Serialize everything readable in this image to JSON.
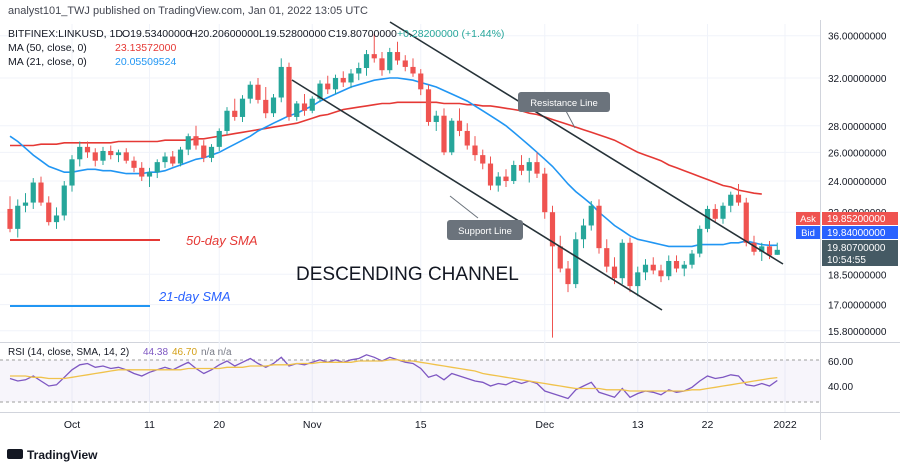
{
  "header": {
    "published": "analyst101_TWJ published on TradingView.com, Jan 01, 2022 13:05 UTC"
  },
  "legend": {
    "symbol": "BITFINEX:LINKUSD, 1D",
    "o": "O19.53400000",
    "h": "H20.20600000",
    "l": "L19.52800000",
    "c": "C19.80700000",
    "change": "+0.28200000 (+1.44%)",
    "ma50_label": "MA (50, close, 0)",
    "ma50_value": "23.13572000",
    "ma21_label": "MA (21, close, 0)",
    "ma21_value": "20.05509524"
  },
  "annotations": {
    "sma50": "50-day SMA",
    "sma21": "21-day SMA",
    "channel": "DESCENDING CHANNEL",
    "resistance": "Resistance Line",
    "support": "Support Line"
  },
  "price_tags": {
    "ask_label": "Ask",
    "ask_value": "19.85200000",
    "bid_label": "Bid",
    "bid_value": "19.84000000",
    "last_value": "19.80700000",
    "countdown": "10:54:55"
  },
  "rsi_legend": {
    "label": "RSI (14, close, SMA, 14, 2)",
    "value1": "44.38",
    "value2": "46.70",
    "na": "n/a  n/a"
  },
  "footer": {
    "brand": "TradingView"
  },
  "colors": {
    "up": "#26a69a",
    "down": "#ef5350",
    "ma50": "#e53935",
    "ma21": "#2196f3",
    "rsi": "#7e57c2",
    "rsi_ma": "#f0c24b",
    "trendline": "#263238",
    "ask": "#ef5350",
    "bid": "#2962ff",
    "last": "#455a64"
  },
  "chart_data": [
    {
      "type": "candlestick",
      "y_scale": "log",
      "y_ticks": [
        "36.00000000",
        "32.00000000",
        "28.00000000",
        "26.00000000",
        "24.00000000",
        "22.00000000",
        "18.50000000",
        "17.00000000",
        "15.80000000"
      ],
      "y_tick_values": [
        36,
        32,
        28,
        26,
        24,
        22,
        18.5,
        17,
        15.8
      ],
      "ylim": [
        15.4,
        37.2
      ],
      "x_ticks": [
        {
          "label": "Oct",
          "index": 8
        },
        {
          "label": "11",
          "index": 18
        },
        {
          "label": "20",
          "index": 27
        },
        {
          "label": "Nov",
          "index": 39
        },
        {
          "label": "15",
          "index": 53
        },
        {
          "label": "Dec",
          "index": 69
        },
        {
          "label": "13",
          "index": 81
        },
        {
          "label": "22",
          "index": 90
        },
        {
          "label": "2022",
          "index": 100
        }
      ],
      "candles_ohlc": [
        [
          22.2,
          23.0,
          20.8,
          21.0
        ],
        [
          21.0,
          22.8,
          20.5,
          22.4
        ],
        [
          22.4,
          23.2,
          22.0,
          22.6
        ],
        [
          22.6,
          24.2,
          22.2,
          23.9
        ],
        [
          23.9,
          24.3,
          22.4,
          22.6
        ],
        [
          22.6,
          23.0,
          21.2,
          21.4
        ],
        [
          21.4,
          22.3,
          21.0,
          21.8
        ],
        [
          21.8,
          24.0,
          21.5,
          23.7
        ],
        [
          23.7,
          25.8,
          23.3,
          25.5
        ],
        [
          25.5,
          26.8,
          25.0,
          26.4
        ],
        [
          26.4,
          26.8,
          25.6,
          26.0
        ],
        [
          26.0,
          26.3,
          25.0,
          25.4
        ],
        [
          25.4,
          26.4,
          25.1,
          26.1
        ],
        [
          26.1,
          26.5,
          25.5,
          25.8
        ],
        [
          25.8,
          26.2,
          25.3,
          26.0
        ],
        [
          26.0,
          26.3,
          25.2,
          25.4
        ],
        [
          25.4,
          25.7,
          24.6,
          24.9
        ],
        [
          24.9,
          25.3,
          24.0,
          24.3
        ],
        [
          24.3,
          24.9,
          23.6,
          24.6
        ],
        [
          24.6,
          25.5,
          24.2,
          25.3
        ],
        [
          25.3,
          26.0,
          24.9,
          25.7
        ],
        [
          25.7,
          26.1,
          25.0,
          25.2
        ],
        [
          25.2,
          26.4,
          25.0,
          26.2
        ],
        [
          26.2,
          27.4,
          25.8,
          27.2
        ],
        [
          27.2,
          28.0,
          26.2,
          26.5
        ],
        [
          26.5,
          26.9,
          25.3,
          25.6
        ],
        [
          25.6,
          26.6,
          25.3,
          26.4
        ],
        [
          26.4,
          27.8,
          26.1,
          27.6
        ],
        [
          27.6,
          29.5,
          27.3,
          29.2
        ],
        [
          29.2,
          30.2,
          28.4,
          28.7
        ],
        [
          28.7,
          30.5,
          28.3,
          30.2
        ],
        [
          30.2,
          31.7,
          29.8,
          31.4
        ],
        [
          31.4,
          32.0,
          29.8,
          30.1
        ],
        [
          30.1,
          31.2,
          28.6,
          29.0
        ],
        [
          29.0,
          30.6,
          28.7,
          30.3
        ],
        [
          30.3,
          33.8,
          29.9,
          33.0
        ],
        [
          33.0,
          33.4,
          28.4,
          28.7
        ],
        [
          28.7,
          30.0,
          28.4,
          29.8
        ],
        [
          29.8,
          30.6,
          28.8,
          29.2
        ],
        [
          29.2,
          30.4,
          29.0,
          30.2
        ],
        [
          30.2,
          31.8,
          29.9,
          31.5
        ],
        [
          31.5,
          32.2,
          30.6,
          31.0
        ],
        [
          31.0,
          32.3,
          30.6,
          32.0
        ],
        [
          32.0,
          32.6,
          31.2,
          31.6
        ],
        [
          31.6,
          32.8,
          31.1,
          32.4
        ],
        [
          32.4,
          33.4,
          31.8,
          32.9
        ],
        [
          32.9,
          34.6,
          32.2,
          34.2
        ],
        [
          34.2,
          36.2,
          33.4,
          33.8
        ],
        [
          33.8,
          34.4,
          32.2,
          32.7
        ],
        [
          32.7,
          34.8,
          32.4,
          34.4
        ],
        [
          34.4,
          35.4,
          33.2,
          33.6
        ],
        [
          33.6,
          34.1,
          32.6,
          33.0
        ],
        [
          33.0,
          33.8,
          32.1,
          32.4
        ],
        [
          32.4,
          32.8,
          30.5,
          31.0
        ],
        [
          31.0,
          31.4,
          28.0,
          28.3
        ],
        [
          28.3,
          29.2,
          27.6,
          28.8
        ],
        [
          28.8,
          29.4,
          25.8,
          26.0
        ],
        [
          26.0,
          28.6,
          25.8,
          28.4
        ],
        [
          28.4,
          29.4,
          27.2,
          27.6
        ],
        [
          27.6,
          28.2,
          26.2,
          26.5
        ],
        [
          26.5,
          27.2,
          25.4,
          25.8
        ],
        [
          25.8,
          26.2,
          24.8,
          25.2
        ],
        [
          25.2,
          25.7,
          23.4,
          23.7
        ],
        [
          23.7,
          24.6,
          23.3,
          24.3
        ],
        [
          24.3,
          24.8,
          23.6,
          24.0
        ],
        [
          24.0,
          25.4,
          23.8,
          25.1
        ],
        [
          25.1,
          25.8,
          24.4,
          24.7
        ],
        [
          24.7,
          25.6,
          23.9,
          25.3
        ],
        [
          25.3,
          26.0,
          24.2,
          24.5
        ],
        [
          24.5,
          24.9,
          21.6,
          22.0
        ],
        [
          22.0,
          22.4,
          15.5,
          20.0
        ],
        [
          20.0,
          20.6,
          18.6,
          18.8
        ],
        [
          18.8,
          19.2,
          17.6,
          18.0
        ],
        [
          18.0,
          20.8,
          17.8,
          20.4
        ],
        [
          20.4,
          21.6,
          19.9,
          21.2
        ],
        [
          21.2,
          22.7,
          20.9,
          22.4
        ],
        [
          22.4,
          22.8,
          19.6,
          19.9
        ],
        [
          19.9,
          20.4,
          18.6,
          18.9
        ],
        [
          18.9,
          19.4,
          18.0,
          18.3
        ],
        [
          18.3,
          20.4,
          18.0,
          20.2
        ],
        [
          20.2,
          20.5,
          17.6,
          17.9
        ],
        [
          17.9,
          18.9,
          17.4,
          18.6
        ],
        [
          18.6,
          19.3,
          18.2,
          19.0
        ],
        [
          19.0,
          19.4,
          18.5,
          18.7
        ],
        [
          18.7,
          19.0,
          18.1,
          18.4
        ],
        [
          18.4,
          19.5,
          18.2,
          19.2
        ],
        [
          19.2,
          19.5,
          18.6,
          18.8
        ],
        [
          18.8,
          19.2,
          18.4,
          19.0
        ],
        [
          19.0,
          19.8,
          18.8,
          19.6
        ],
        [
          19.6,
          21.2,
          19.4,
          21.0
        ],
        [
          21.0,
          22.4,
          20.8,
          22.2
        ],
        [
          22.2,
          22.5,
          21.4,
          21.6
        ],
        [
          21.6,
          22.6,
          21.3,
          22.4
        ],
        [
          22.4,
          23.3,
          22.0,
          23.1
        ],
        [
          23.1,
          23.8,
          22.4,
          22.6
        ],
        [
          22.6,
          22.9,
          20.0,
          20.2
        ],
        [
          20.2,
          20.6,
          19.5,
          19.7
        ],
        [
          19.7,
          20.2,
          19.2,
          20.0
        ],
        [
          20.0,
          20.3,
          19.3,
          19.5
        ],
        [
          19.534,
          20.206,
          19.528,
          19.807
        ]
      ],
      "ma50": [
        26.5,
        26.5,
        26.5,
        26.5,
        26.6,
        26.6,
        26.6,
        26.7,
        26.7,
        26.7,
        26.7,
        26.7,
        26.7,
        26.7,
        26.8,
        26.8,
        26.8,
        26.8,
        26.8,
        26.8,
        26.9,
        26.9,
        26.9,
        26.9,
        27.0,
        27.0,
        27.1,
        27.2,
        27.3,
        27.4,
        27.5,
        27.6,
        27.7,
        27.8,
        27.9,
        28.0,
        28.1,
        28.2,
        28.4,
        28.6,
        28.8,
        28.9,
        29.1,
        29.3,
        29.4,
        29.5,
        29.6,
        29.7,
        29.8,
        29.8,
        29.9,
        29.9,
        29.9,
        29.9,
        29.9,
        29.9,
        29.8,
        29.8,
        29.8,
        29.7,
        29.7,
        29.6,
        29.6,
        29.5,
        29.4,
        29.3,
        29.2,
        29.0,
        28.9,
        28.7,
        28.5,
        28.3,
        28.1,
        27.9,
        27.7,
        27.5,
        27.3,
        27.1,
        26.9,
        26.6,
        26.3,
        26.0,
        25.8,
        25.6,
        25.4,
        25.1,
        24.9,
        24.7,
        24.5,
        24.3,
        24.1,
        23.9,
        23.7,
        23.6,
        23.4,
        23.3,
        23.2,
        23.14
      ],
      "ma21": [
        27.2,
        26.8,
        26.3,
        25.8,
        25.4,
        25.0,
        24.8,
        24.6,
        24.6,
        24.7,
        24.8,
        24.8,
        24.7,
        24.7,
        24.6,
        24.5,
        24.5,
        24.5,
        24.6,
        24.6,
        24.7,
        24.9,
        25.1,
        25.3,
        25.5,
        25.6,
        25.8,
        26.0,
        26.3,
        26.6,
        26.9,
        27.2,
        27.6,
        27.9,
        28.2,
        28.5,
        28.8,
        29.0,
        29.3,
        29.6,
        30.0,
        30.3,
        30.6,
        30.9,
        31.2,
        31.4,
        31.6,
        31.8,
        31.9,
        32.0,
        32.0,
        31.9,
        31.8,
        31.6,
        31.4,
        31.2,
        30.9,
        30.6,
        30.3,
        30.0,
        29.6,
        29.2,
        28.8,
        28.4,
        28.0,
        27.5,
        27.0,
        26.5,
        26.0,
        25.5,
        25.0,
        24.4,
        23.8,
        23.3,
        22.9,
        22.5,
        22.0,
        21.6,
        21.2,
        20.9,
        20.6,
        20.4,
        20.3,
        20.2,
        20.1,
        20.0,
        20.0,
        20.0,
        20.0,
        20.1,
        20.1,
        20.1,
        20.1,
        20.2,
        20.2,
        20.3,
        20.2,
        20.1,
        20.06,
        20.06
      ]
    },
    {
      "type": "line",
      "title": "RSI (14, close, SMA, 14, 2)",
      "y_ticks": [
        "60.00",
        "40.00"
      ],
      "y_tick_values": [
        60,
        40
      ],
      "ylim": [
        20,
        72
      ],
      "series": [
        {
          "name": "RSI",
          "values": [
            46,
            44,
            45,
            48,
            44,
            40,
            41,
            47,
            53,
            57,
            58,
            55,
            56,
            54,
            55,
            53,
            50,
            48,
            51,
            53,
            55,
            53,
            56,
            59,
            54,
            50,
            53,
            57,
            60,
            56,
            59,
            62,
            58,
            55,
            58,
            63,
            56,
            58,
            57,
            59,
            61,
            59,
            61,
            59,
            61,
            62,
            65,
            63,
            60,
            63,
            61,
            59,
            58,
            54,
            47,
            49,
            45,
            50,
            48,
            46,
            44,
            43,
            40,
            42,
            41,
            44,
            42,
            44,
            42,
            36,
            34,
            32,
            30,
            37,
            40,
            43,
            35,
            33,
            31,
            38,
            31,
            34,
            36,
            35,
            33,
            37,
            35,
            36,
            39,
            44,
            48,
            46,
            47,
            49,
            48,
            41,
            40,
            42,
            40,
            44.38
          ]
        },
        {
          "name": "RSI SMA",
          "values": [
            48,
            48,
            48,
            47,
            47,
            46,
            46,
            46,
            47,
            48,
            49,
            50,
            51,
            52,
            53,
            53,
            53,
            53,
            53,
            53,
            53,
            53,
            53,
            54,
            54,
            54,
            54,
            54,
            55,
            55,
            55,
            56,
            56,
            56,
            57,
            57,
            57,
            58,
            58,
            58,
            59,
            59,
            59,
            59,
            59,
            60,
            60,
            60,
            60,
            61,
            61,
            60,
            60,
            59,
            58,
            57,
            56,
            55,
            54,
            53,
            52,
            50,
            49,
            48,
            47,
            46,
            45,
            44,
            43,
            42,
            41,
            40,
            39,
            38,
            38,
            38,
            38,
            37,
            37,
            37,
            36,
            36,
            36,
            36,
            36,
            36,
            36,
            36,
            37,
            37,
            38,
            39,
            40,
            41,
            42,
            43,
            44,
            45,
            46,
            46.7
          ]
        }
      ]
    }
  ]
}
